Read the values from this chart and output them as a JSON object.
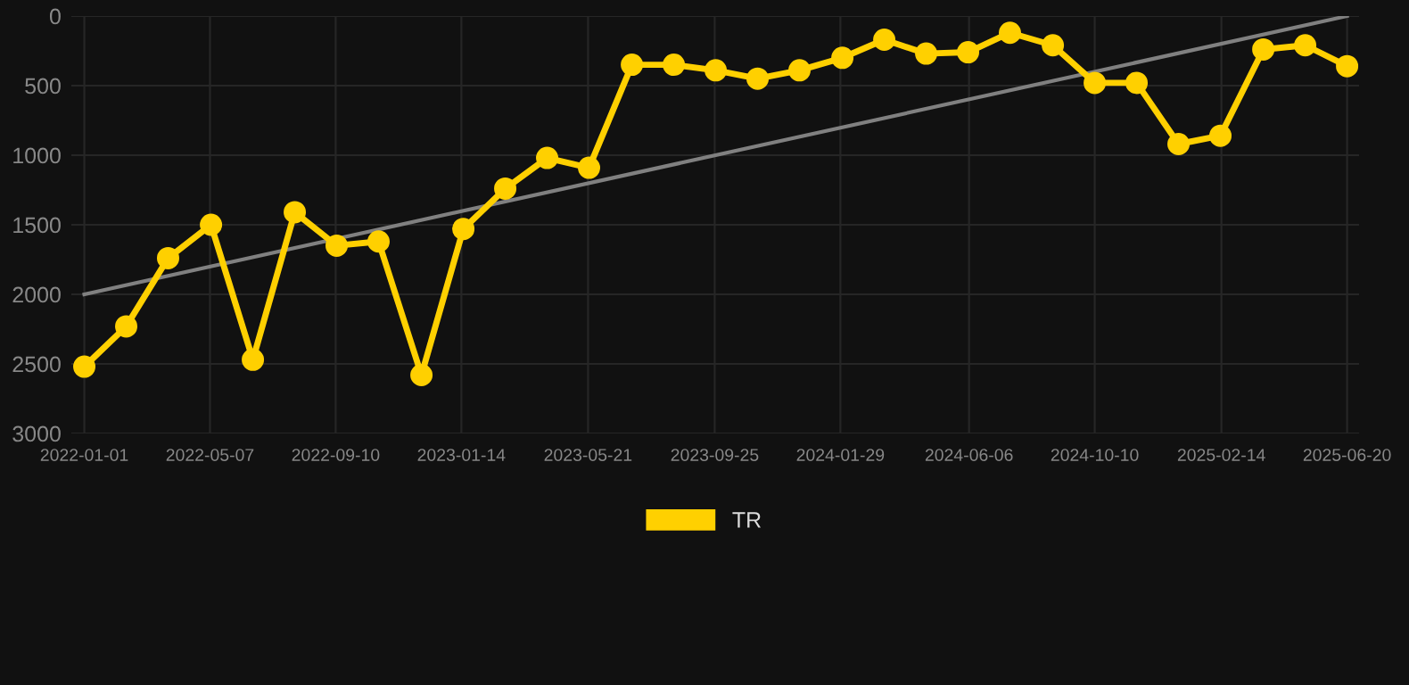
{
  "chart_data": {
    "type": "line",
    "x": [
      "2022-01-01",
      "2022-02-12",
      "2022-03-26",
      "2022-05-08",
      "2022-06-19",
      "2022-07-31",
      "2022-09-11",
      "2022-10-23",
      "2022-12-05",
      "2023-01-16",
      "2023-02-27",
      "2023-04-10",
      "2023-05-22",
      "2023-07-04",
      "2023-08-15",
      "2023-09-26",
      "2023-11-07",
      "2023-12-19",
      "2024-01-31",
      "2024-03-13",
      "2024-04-24",
      "2024-06-05",
      "2024-07-17",
      "2024-08-29",
      "2024-10-10",
      "2024-11-21",
      "2025-01-02",
      "2025-02-13",
      "2025-03-28",
      "2025-05-09",
      "2025-06-20"
    ],
    "series": [
      {
        "name": "TR",
        "color": "#ffd000",
        "marker": "circle",
        "values": [
          2520,
          2230,
          1740,
          1500,
          2470,
          1410,
          1650,
          1620,
          2580,
          1530,
          1240,
          1020,
          1090,
          350,
          350,
          390,
          450,
          390,
          300,
          170,
          270,
          260,
          120,
          210,
          480,
          480,
          920,
          860,
          240,
          210,
          360
        ]
      },
      {
        "type": "line",
        "color": "#808080",
        "marker": "none",
        "x": [
          "2022-01-01",
          "2025-06-20"
        ],
        "values": [
          2000,
          0
        ]
      }
    ],
    "xlim": [
      "2021-12-19",
      "2025-07-02"
    ],
    "xticks": [
      {
        "value": "2022-01-01",
        "label": "2022-01-01"
      },
      {
        "value": "2022-05-07",
        "label": "2022-05-07"
      },
      {
        "value": "2022-09-10",
        "label": "2022-09-10"
      },
      {
        "value": "2023-01-14",
        "label": "2023-01-14"
      },
      {
        "value": "2023-05-21",
        "label": "2023-05-21"
      },
      {
        "value": "2023-09-25",
        "label": "2023-09-25"
      },
      {
        "value": "2024-01-29",
        "label": "2024-01-29"
      },
      {
        "value": "2024-06-06",
        "label": "2024-06-06"
      },
      {
        "value": "2024-10-10",
        "label": "2024-10-10"
      },
      {
        "value": "2025-02-14",
        "label": "2025-02-14"
      },
      {
        "value": "2025-06-20",
        "label": "2025-06-20"
      }
    ],
    "ylim": [
      3000,
      0
    ],
    "yticks": [
      0,
      500,
      1000,
      1500,
      2000,
      2500,
      3000
    ],
    "grid": true,
    "legend": "bottom"
  }
}
